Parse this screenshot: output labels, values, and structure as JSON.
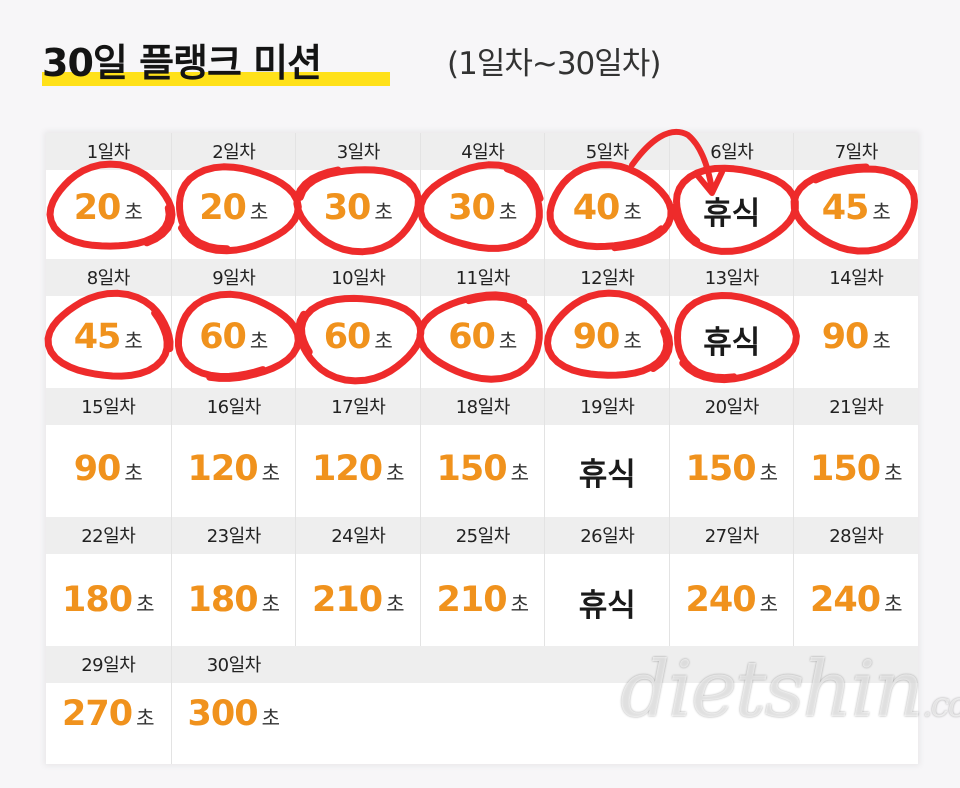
{
  "header": {
    "title": "30일 플랭크 미션",
    "subtitle": "(1일차~30일차)"
  },
  "unit": "초",
  "rest_label": "휴식",
  "days": [
    {
      "label": "1일차",
      "value": "20",
      "circled": true
    },
    {
      "label": "2일차",
      "value": "20",
      "circled": true
    },
    {
      "label": "3일차",
      "value": "30",
      "circled": true
    },
    {
      "label": "4일차",
      "value": "30",
      "circled": true
    },
    {
      "label": "5일차",
      "value": "40",
      "circled": true
    },
    {
      "label": "6일차",
      "value": "휴식",
      "circled": true
    },
    {
      "label": "7일차",
      "value": "45",
      "circled": true
    },
    {
      "label": "8일차",
      "value": "45",
      "circled": true
    },
    {
      "label": "9일차",
      "value": "60",
      "circled": true
    },
    {
      "label": "10일차",
      "value": "60",
      "circled": true
    },
    {
      "label": "11일차",
      "value": "60",
      "circled": true
    },
    {
      "label": "12일차",
      "value": "90",
      "circled": true
    },
    {
      "label": "13일차",
      "value": "휴식",
      "circled": true
    },
    {
      "label": "14일차",
      "value": "90",
      "circled": false
    },
    {
      "label": "15일차",
      "value": "90",
      "circled": false
    },
    {
      "label": "16일차",
      "value": "120",
      "circled": false
    },
    {
      "label": "17일차",
      "value": "120",
      "circled": false
    },
    {
      "label": "18일차",
      "value": "150",
      "circled": false
    },
    {
      "label": "19일차",
      "value": "휴식",
      "circled": false
    },
    {
      "label": "20일차",
      "value": "150",
      "circled": false
    },
    {
      "label": "21일차",
      "value": "150",
      "circled": false
    },
    {
      "label": "22일차",
      "value": "180",
      "circled": false
    },
    {
      "label": "23일차",
      "value": "180",
      "circled": false
    },
    {
      "label": "24일차",
      "value": "210",
      "circled": false
    },
    {
      "label": "25일차",
      "value": "210",
      "circled": false
    },
    {
      "label": "26일차",
      "value": "휴식",
      "circled": false
    },
    {
      "label": "27일차",
      "value": "240",
      "circled": false
    },
    {
      "label": "28일차",
      "value": "240",
      "circled": false
    },
    {
      "label": "29일차",
      "value": "270",
      "circled": false
    },
    {
      "label": "30일차",
      "value": "300",
      "circled": false
    }
  ],
  "colors": {
    "accent_number": "#f0921d",
    "highlight": "#ffe11a",
    "marker": "#ee2b2b"
  },
  "watermark": {
    "main": "dietshin",
    "suffix": ".com"
  }
}
